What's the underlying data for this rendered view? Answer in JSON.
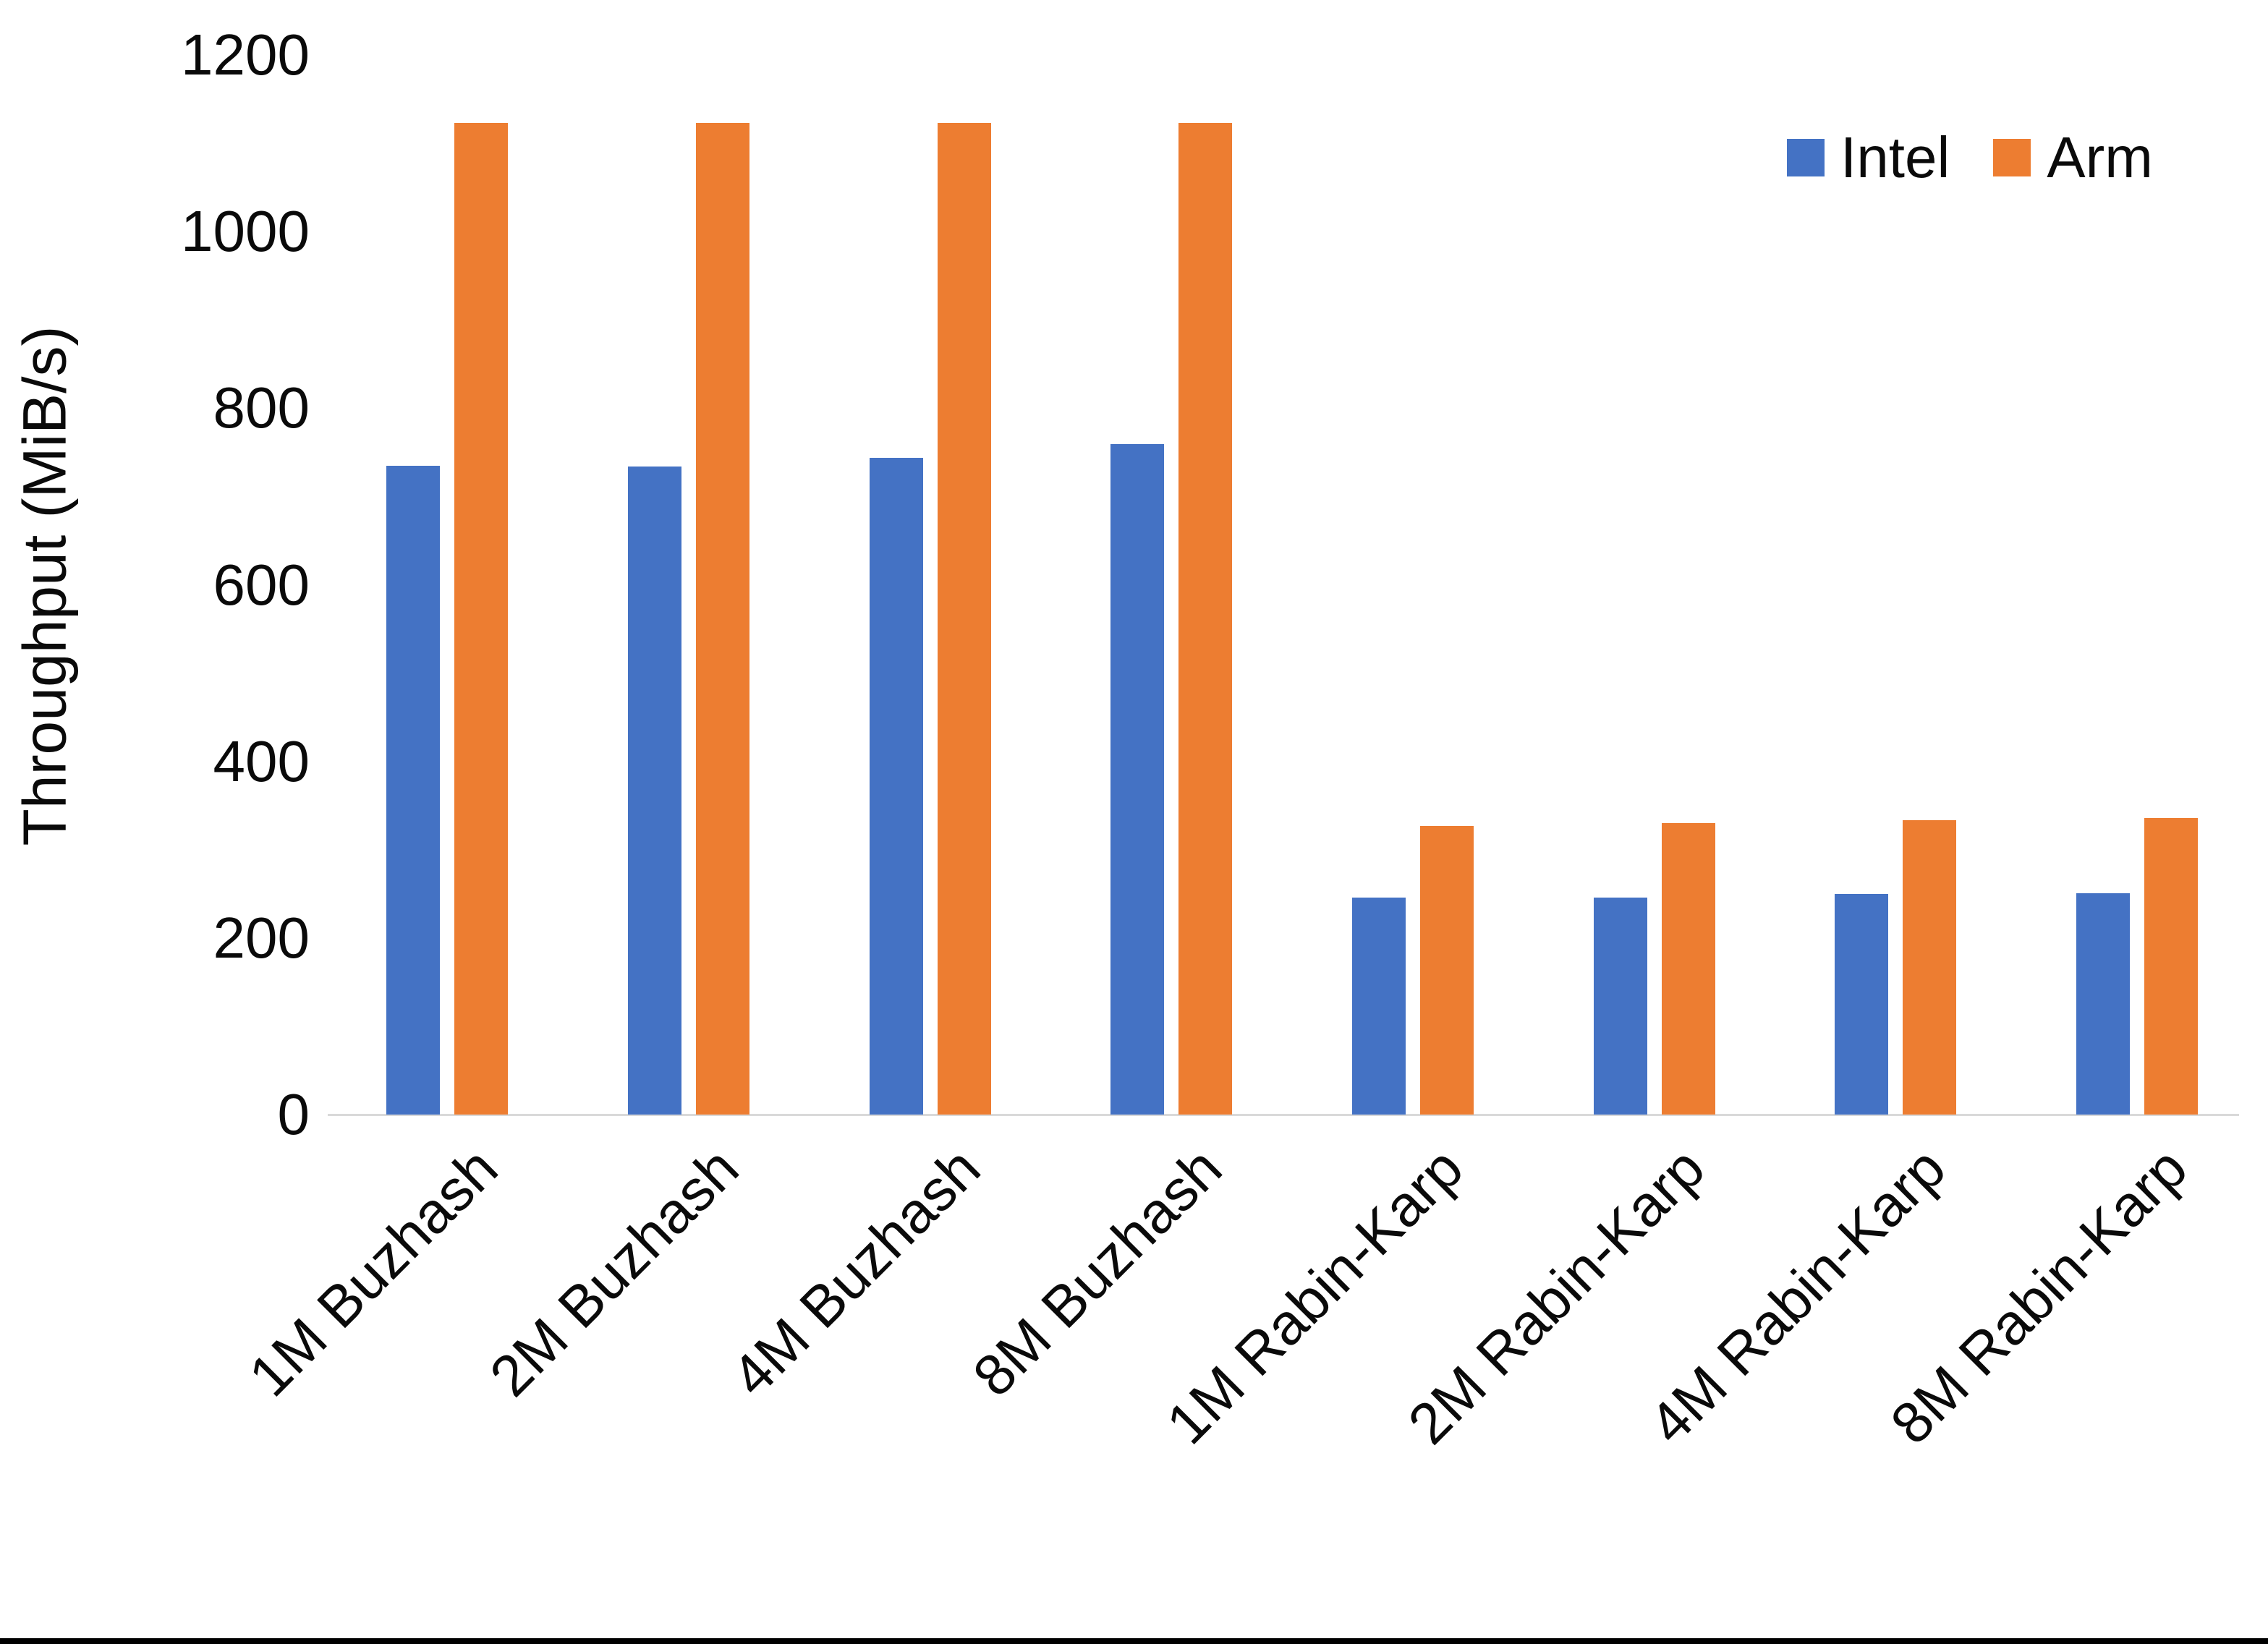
{
  "chart_data": {
    "type": "bar",
    "title": "",
    "xlabel": "",
    "ylabel": "Throughput (MiB/s)",
    "ylim": [
      0,
      1200
    ],
    "yticks": [
      0,
      200,
      400,
      600,
      800,
      1000,
      1200
    ],
    "grid": false,
    "legend_position": "top-right",
    "categories": [
      "1M Buzhash",
      "2M Buzhash",
      "4M Buzhash",
      "8M Buzhash",
      "1M Rabin-Karp",
      "2M Rabin-Karp",
      "4M Rabin-Karp",
      "8M Rabin-Karp"
    ],
    "series": [
      {
        "name": "Intel",
        "color": "#4472C4",
        "values": [
          735,
          734,
          744,
          759,
          246,
          246,
          250,
          251
        ]
      },
      {
        "name": "Arm",
        "color": "#ED7D31",
        "values": [
          1123,
          1123,
          1123,
          1123,
          327,
          330,
          333,
          336
        ]
      }
    ]
  },
  "colors": {
    "background": "#FFFFFF",
    "axis_line": "#D9D9D9",
    "text": "#000000",
    "bottom_border": "#000000"
  }
}
